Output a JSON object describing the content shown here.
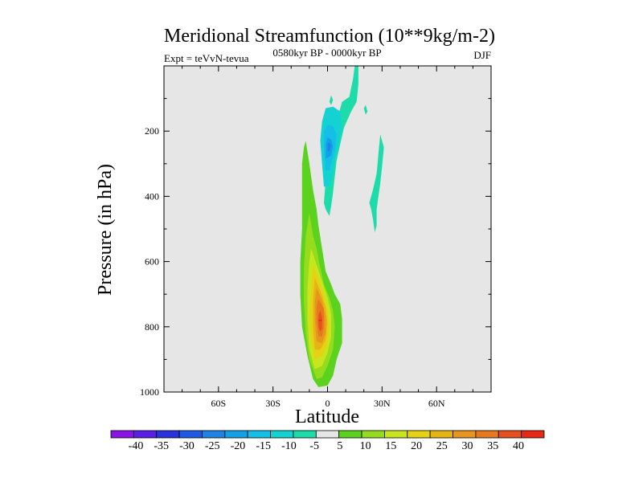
{
  "chart_data": {
    "type": "heatmap",
    "title": "Meridional Streamfunction (10**9kg/m-2)",
    "left_label": "Expt = teVvN-tevua",
    "center_label": "0580kyr BP - 0000kyr BP",
    "right_label": "DJF",
    "xlabel": "Latitude",
    "ylabel": "Pressure (in hPa)",
    "xlim": [
      -90,
      90
    ],
    "ylim": [
      1000,
      0
    ],
    "x_ticks": [
      {
        "value": -60,
        "label": "60S"
      },
      {
        "value": -30,
        "label": "30S"
      },
      {
        "value": 0,
        "label": "0"
      },
      {
        "value": 30,
        "label": "30N"
      },
      {
        "value": 60,
        "label": "60N"
      }
    ],
    "y_ticks": [
      {
        "value": 200,
        "label": "200"
      },
      {
        "value": 400,
        "label": "400"
      },
      {
        "value": 600,
        "label": "600"
      },
      {
        "value": 800,
        "label": "800"
      },
      {
        "value": 1000,
        "label": "1000"
      }
    ],
    "background_color": "#e6e6e6",
    "colorbar": {
      "bins": [
        {
          "color": "#8a14e6"
        },
        {
          "color": "#5a1ee6"
        },
        {
          "color": "#2a32dc"
        },
        {
          "color": "#1e5ae6"
        },
        {
          "color": "#1e82e6"
        },
        {
          "color": "#14a0e6"
        },
        {
          "color": "#14bee6"
        },
        {
          "color": "#14d2d2"
        },
        {
          "color": "#1edcaa"
        },
        {
          "color": "#e6e6e6"
        },
        {
          "color": "#5ad21e"
        },
        {
          "color": "#96dc1e"
        },
        {
          "color": "#c8e61e"
        },
        {
          "color": "#e6d214"
        },
        {
          "color": "#e6b414"
        },
        {
          "color": "#e6961e"
        },
        {
          "color": "#e6781e"
        },
        {
          "color": "#e6501e"
        },
        {
          "color": "#e62814"
        }
      ],
      "labels": [
        "-40",
        "-35",
        "-30",
        "-25",
        "-20",
        "-15",
        "-10",
        "-5",
        "5",
        "10",
        "15",
        "20",
        "25",
        "30",
        "35",
        "40"
      ]
    },
    "contour_fields": [
      {
        "name": "negative cell (upper troposphere)",
        "levels": [
          {
            "color": "#1edcaa",
            "points": [
              [
                -2,
                420
              ],
              [
                -1,
                350
              ],
              [
                0,
                300
              ],
              [
                2,
                245
              ],
              [
                4,
                190
              ],
              [
                6,
                150
              ],
              [
                8,
                110
              ],
              [
                12,
                95
              ],
              [
                14,
                40
              ],
              [
                15,
                0
              ],
              [
                17,
                0
              ],
              [
                17,
                55
              ],
              [
                16,
                110
              ],
              [
                13,
                140
              ],
              [
                9,
                190
              ],
              [
                7,
                240
              ],
              [
                5,
                290
              ],
              [
                4,
                340
              ],
              [
                3,
                390
              ],
              [
                2,
                430
              ],
              [
                1,
                460
              ],
              [
                0,
                450
              ],
              [
                -1,
                440
              ]
            ]
          },
          {
            "color": "#14d2d2",
            "points": [
              [
                -2,
                370
              ],
              [
                -3,
                300
              ],
              [
                -4,
                230
              ],
              [
                -3,
                170
              ],
              [
                -1,
                130
              ],
              [
                3,
                125
              ],
              [
                7,
                140
              ],
              [
                8,
                190
              ],
              [
                6,
                240
              ],
              [
                4,
                290
              ],
              [
                3,
                330
              ],
              [
                1,
                370
              ]
            ]
          },
          {
            "color": "#14bee6",
            "points": [
              [
                -1,
                320
              ],
              [
                -2,
                260
              ],
              [
                -2,
                200
              ],
              [
                0,
                180
              ],
              [
                3,
                185
              ],
              [
                5,
                210
              ],
              [
                4,
                260
              ],
              [
                2,
                300
              ],
              [
                1,
                320
              ]
            ]
          },
          {
            "color": "#14a0e6",
            "points": [
              [
                -1,
                285
              ],
              [
                -1,
                240
              ],
              [
                0,
                220
              ],
              [
                2,
                225
              ],
              [
                3,
                245
              ],
              [
                2,
                275
              ]
            ]
          },
          {
            "color": "#1e82e6",
            "points": [
              [
                0,
                260
              ],
              [
                0,
                240
              ],
              [
                1,
                235
              ],
              [
                2,
                245
              ],
              [
                1,
                262
              ]
            ]
          },
          {
            "color": "#1edcaa",
            "points": [
              [
                23,
                420
              ],
              [
                25,
                380
              ],
              [
                27,
                330
              ],
              [
                28,
                270
              ],
              [
                29,
                210
              ],
              [
                31,
                250
              ],
              [
                30,
                310
              ],
              [
                29,
                360
              ],
              [
                28,
                400
              ],
              [
                27,
                440
              ],
              [
                27,
                490
              ],
              [
                26,
                510
              ],
              [
                25,
                470
              ],
              [
                24,
                440
              ]
            ]
          },
          {
            "color": "#1edcaa",
            "points": [
              [
                1,
                110
              ],
              [
                2,
                90
              ],
              [
                3,
                105
              ],
              [
                2,
                120
              ]
            ]
          },
          {
            "color": "#1edcaa",
            "points": [
              [
                20,
                130
              ],
              [
                21,
                120
              ],
              [
                22,
                140
              ],
              [
                21,
                150
              ]
            ]
          }
        ]
      },
      {
        "name": "positive cell (lower troposphere)",
        "levels": [
          {
            "color": "#5ad21e",
            "points": [
              [
                -12,
                230
              ],
              [
                -10,
                300
              ],
              [
                -8,
                380
              ],
              [
                -6,
                440
              ],
              [
                -5,
                490
              ],
              [
                -3,
                560
              ],
              [
                -1,
                630
              ],
              [
                2,
                670
              ],
              [
                4,
                700
              ],
              [
                7,
                730
              ],
              [
                8,
                775
              ],
              [
                8,
                850
              ],
              [
                5,
                900
              ],
              [
                3,
                950
              ],
              [
                0,
                980
              ],
              [
                -5,
                985
              ],
              [
                -8,
                960
              ],
              [
                -11,
                890
              ],
              [
                -14,
                800
              ],
              [
                -15,
                700
              ],
              [
                -15,
                600
              ],
              [
                -14,
                500
              ],
              [
                -14,
                400
              ],
              [
                -14,
                300
              ],
              [
                -13,
                250
              ]
            ]
          },
          {
            "color": "#96dc1e",
            "points": [
              [
                -10,
                450
              ],
              [
                -8,
                520
              ],
              [
                -6,
                560
              ],
              [
                -4,
                620
              ],
              [
                -2,
                670
              ],
              [
                1,
                710
              ],
              [
                3,
                750
              ],
              [
                4,
                800
              ],
              [
                3,
                870
              ],
              [
                0,
                920
              ],
              [
                -3,
                955
              ],
              [
                -6,
                960
              ],
              [
                -10,
                900
              ],
              [
                -12,
                820
              ],
              [
                -13,
                720
              ],
              [
                -13,
                620
              ],
              [
                -12,
                520
              ]
            ]
          },
          {
            "color": "#c8e61e",
            "points": [
              [
                -9,
                560
              ],
              [
                -6,
                610
              ],
              [
                -3,
                660
              ],
              [
                0,
                710
              ],
              [
                2,
                760
              ],
              [
                2,
                830
              ],
              [
                0,
                880
              ],
              [
                -3,
                920
              ],
              [
                -7,
                930
              ],
              [
                -10,
                870
              ],
              [
                -11,
                780
              ],
              [
                -11,
                680
              ],
              [
                -10,
                600
              ]
            ]
          },
          {
            "color": "#e6d214",
            "points": [
              [
                -8,
                610
              ],
              [
                -5,
                650
              ],
              [
                -2,
                700
              ],
              [
                0,
                750
              ],
              [
                1,
                800
              ],
              [
                0,
                850
              ],
              [
                -3,
                890
              ],
              [
                -7,
                900
              ],
              [
                -9,
                840
              ],
              [
                -10,
                760
              ],
              [
                -9,
                680
              ]
            ]
          },
          {
            "color": "#e6b414",
            "points": [
              [
                -7,
                650
              ],
              [
                -4,
                690
              ],
              [
                -1,
                740
              ],
              [
                0,
                790
              ],
              [
                -1,
                840
              ],
              [
                -4,
                870
              ],
              [
                -7,
                870
              ],
              [
                -8,
                800
              ],
              [
                -8,
                720
              ]
            ]
          },
          {
            "color": "#e6961e",
            "points": [
              [
                -6,
                680
              ],
              [
                -3,
                720
              ],
              [
                -1,
                770
              ],
              [
                -1,
                820
              ],
              [
                -3,
                850
              ],
              [
                -6,
                845
              ],
              [
                -7,
                780
              ],
              [
                -7,
                720
              ]
            ]
          },
          {
            "color": "#e6781e",
            "points": [
              [
                -5,
                715
              ],
              [
                -2,
                745
              ],
              [
                -2,
                800
              ],
              [
                -3,
                830
              ],
              [
                -5,
                828
              ],
              [
                -6,
                780
              ],
              [
                -6,
                740
              ]
            ]
          },
          {
            "color": "#e6501e",
            "points": [
              [
                -4,
                750
              ],
              [
                -3,
                770
              ],
              [
                -3,
                805
              ],
              [
                -4,
                815
              ],
              [
                -5,
                800
              ],
              [
                -5,
                765
              ]
            ]
          },
          {
            "color": "#e62814",
            "points": [
              [
                -5,
                778
              ],
              [
                -3,
                778
              ],
              [
                -3,
                782
              ],
              [
                -5,
                782
              ]
            ]
          }
        ]
      }
    ]
  }
}
